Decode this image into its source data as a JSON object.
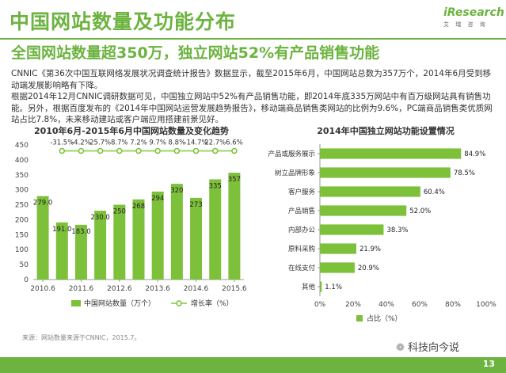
{
  "header": {
    "title": "中国网站数量及功能分布",
    "subtitle": "全国网站数量超350万，独立网站52%有产品销售功能",
    "logo_text": "iResearch",
    "logo_sub": "艾 瑞 咨 询"
  },
  "body": {
    "paragraph1": "CNNIC《第36次中国互联网络发展状况调查统计报告》数据显示，截至2015年6月，中国网站总数为357万个，2014年6月受到移动端发展影响略有下降。",
    "paragraph2": "根据2014年12月CNNIC调研数据可见，中国独立网站中52%有产品销售功能，即2014年底335万网站中有百万级网站具有销售功能。另外，根据百度发布的《2014年中国网站运营发展趋势报告》，移动端商品销售类网站的比例为9.6%，PC端商品销售类优质网站占比7.8%，未来移动建站或客户端应用搭建前景见好。"
  },
  "chart_data": [
    {
      "type": "bar",
      "title": "2010年6月-2015年6月中国网站数量及变化趋势",
      "categories": [
        "2010.6",
        "2010.12",
        "2011.6",
        "2011.12",
        "2012.6",
        "2012.12",
        "2013.6",
        "2013.12",
        "2014.6",
        "2014.12",
        "2015.6"
      ],
      "x_tick_labels": [
        "2010.6",
        "2011.6",
        "2012.6",
        "2013.6",
        "2014.6",
        "2015.6"
      ],
      "series": [
        {
          "name": "中国网站数量（万个）",
          "type": "bar",
          "values": [
            279.0,
            191.0,
            183.0,
            230.0,
            250,
            268,
            294,
            320,
            273,
            335,
            357
          ],
          "value_labels": [
            "279.0",
            "191.0",
            "183.0",
            "230.0",
            "250",
            "268",
            "294",
            "320",
            "273",
            "335",
            "357"
          ]
        },
        {
          "name": "增长率（%）",
          "type": "line",
          "values": [
            null,
            -31.5,
            -4.2,
            25.7,
            8.7,
            7.2,
            9.7,
            8.8,
            -14.7,
            22.7,
            6.6
          ],
          "value_labels": [
            "",
            "-31.5%",
            "-4.2%",
            "25.7%",
            "8.7%",
            "7.2%",
            "9.7%",
            "8.8%",
            "-14.7%",
            "22.7%",
            "6.6%"
          ]
        }
      ],
      "y_ticks": [
        "0",
        "50",
        "100",
        "150",
        "200",
        "250",
        "300",
        "350",
        "400",
        "450"
      ],
      "ylim": [
        0,
        450
      ],
      "line_y_level": 430,
      "legend_position": "bottom",
      "colors": {
        "bar": "#7dc03a",
        "line": "#9fd66a",
        "marker": "#ffffff",
        "marker_stroke": "#7dc03a"
      }
    },
    {
      "type": "bar",
      "orientation": "horizontal",
      "title": "2014年中国独立网站功能设置情况",
      "categories": [
        "产品或服务展示",
        "树立品牌形象",
        "客户服务",
        "产品销售",
        "内部办公",
        "原料采购",
        "在线支付",
        "其他"
      ],
      "values": [
        84.9,
        78.5,
        60.4,
        52.0,
        38.3,
        21.9,
        20.9,
        1.1
      ],
      "value_labels": [
        "84.9%",
        "78.5%",
        "60.4%",
        "52.0%",
        "38.3%",
        "21.9%",
        "20.9%",
        "1.1%"
      ],
      "x_ticks": [
        "0%",
        "20%",
        "40%",
        "60%",
        "80%",
        "100%"
      ],
      "xlim": [
        0,
        100
      ],
      "series_name": "占比（%）",
      "legend_position": "bottom",
      "colors": {
        "bar": "#7dc03a"
      }
    }
  ],
  "footer": {
    "source": "来源：网站数量来源于CNNIC，2015.7。",
    "wechat_label": "科技向今说",
    "page_number": "13"
  }
}
